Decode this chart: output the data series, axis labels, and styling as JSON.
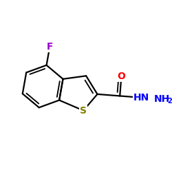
{
  "background_color": "#ffffff",
  "bond_color": "#000000",
  "bond_width": 1.6,
  "F_color": "#9900cc",
  "S_color": "#808000",
  "O_color": "#ff0000",
  "N_color": "#0000ff",
  "font_size_atoms": 10,
  "font_size_sub": 7,
  "xlim": [
    -0.95,
    1.05
  ],
  "ylim": [
    -0.65,
    0.7
  ],
  "figsize": [
    2.5,
    2.5
  ],
  "dpi": 100
}
